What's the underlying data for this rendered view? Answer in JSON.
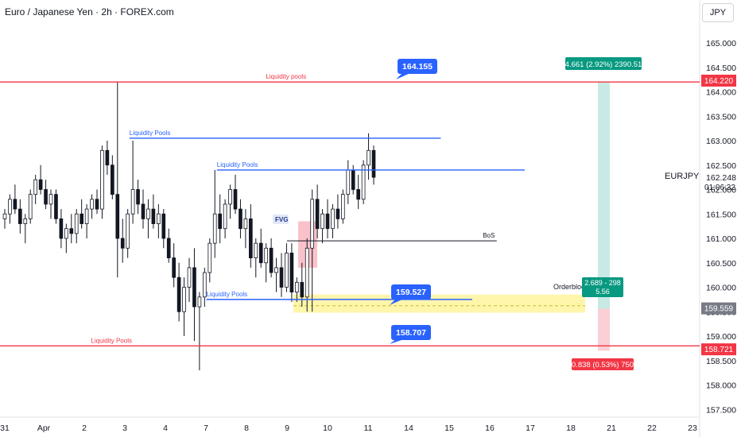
{
  "header": {
    "title": "Euro / Japanese Yen · 2h · FOREX.com",
    "currency_button": "JPY"
  },
  "symbol": {
    "name": "EURJPY",
    "price": "162.248",
    "countdown": "01:06:32"
  },
  "colors": {
    "up": "#131722",
    "down": "#131722",
    "red_line": "#f23645",
    "blue_line": "#2962ff",
    "green_tag": "#089981",
    "yellow_zone": "#fff59d",
    "fvg_box": "#f8bbc4"
  },
  "chart_data": {
    "type": "candlestick",
    "ylim": [
      157.0,
      165.5
    ],
    "y_ticks": [
      "165.000",
      "164.500",
      "164.000",
      "163.500",
      "163.000",
      "162.500",
      "162.000",
      "161.500",
      "161.000",
      "160.500",
      "160.000",
      "159.500",
      "159.000",
      "158.500",
      "158.000",
      "157.500"
    ],
    "x_ticks": [
      "31",
      "Apr",
      "2",
      "3",
      "4",
      "7",
      "8",
      "9",
      "10",
      "11",
      "14",
      "15",
      "16",
      "17",
      "18",
      "21",
      "22",
      "23"
    ],
    "price_tags": [
      {
        "label": "164.220",
        "value": 164.22,
        "color": "#f23645"
      },
      {
        "label": "159.559",
        "value": 159.559,
        "color": "#787b86"
      },
      {
        "label": "158.721",
        "value": 158.721,
        "color": "#f23645"
      }
    ],
    "lines": [
      {
        "label": "Liquidity pools",
        "value": 164.2,
        "color": "#f23645",
        "x_from": 0,
        "x_to": 1,
        "label_x": 0.38
      },
      {
        "label": "Liquidity Pools",
        "value": 163.05,
        "color": "#2962ff",
        "x_from": 0.185,
        "x_to": 0.63,
        "label_x": 0.185
      },
      {
        "label": "Liquidity Pools",
        "value": 162.4,
        "color": "#2962ff",
        "x_from": 0.31,
        "x_to": 0.75,
        "label_x": 0.31
      },
      {
        "label": "Liquidity Pools",
        "value": 159.75,
        "color": "#2962ff",
        "x_from": 0.295,
        "x_to": 0.675,
        "label_x": 0.295
      },
      {
        "label": "Liquidity Pools",
        "value": 158.8,
        "color": "#f23645",
        "x_from": 0,
        "x_to": 1,
        "label_x": 0.13
      },
      {
        "label": "BoS",
        "value": 160.95,
        "color": "#131722",
        "x_from": 0.41,
        "x_to": 0.71,
        "label_x": 0.69
      }
    ],
    "callouts": [
      {
        "label": "164.155",
        "value": 164.155
      },
      {
        "label": "159.527",
        "value": 159.527
      },
      {
        "label": "158.707",
        "value": 158.707
      }
    ],
    "annotations": {
      "fvg": "FVG",
      "orderblock": "Orderblock",
      "target": "4.661 (2.92%) 2390.51",
      "position": "2.689 - 298",
      "position_ratio": "5.56",
      "stop": "0.838 (0.53%) 750"
    },
    "candles": [
      [
        161.4,
        161.6,
        161.2,
        161.5
      ],
      [
        161.5,
        161.9,
        161.3,
        161.8
      ],
      [
        161.8,
        162.1,
        161.5,
        161.6
      ],
      [
        161.6,
        161.8,
        161.1,
        161.3
      ],
      [
        161.3,
        161.5,
        160.9,
        161.4
      ],
      [
        161.4,
        162.0,
        161.3,
        161.9
      ],
      [
        161.9,
        162.3,
        161.7,
        162.2
      ],
      [
        162.2,
        162.5,
        161.9,
        162.0
      ],
      [
        162.0,
        162.2,
        161.6,
        161.7
      ],
      [
        161.7,
        162.0,
        161.4,
        161.9
      ],
      [
        161.9,
        162.0,
        161.3,
        161.4
      ],
      [
        161.4,
        161.6,
        160.8,
        161.0
      ],
      [
        161.0,
        161.3,
        160.7,
        161.2
      ],
      [
        161.2,
        161.5,
        160.9,
        161.1
      ],
      [
        161.1,
        161.6,
        160.9,
        161.5
      ],
      [
        161.5,
        161.8,
        161.2,
        161.3
      ],
      [
        161.3,
        161.7,
        161.0,
        161.6
      ],
      [
        161.6,
        161.9,
        161.4,
        161.8
      ],
      [
        161.8,
        162.0,
        161.5,
        161.6
      ],
      [
        161.6,
        162.9,
        161.4,
        162.8
      ],
      [
        162.8,
        163.0,
        162.3,
        162.5
      ],
      [
        162.5,
        162.7,
        161.8,
        161.9
      ],
      [
        161.9,
        164.2,
        160.2,
        161.0
      ],
      [
        161.0,
        161.4,
        160.5,
        160.8
      ],
      [
        160.8,
        161.6,
        160.6,
        161.5
      ],
      [
        161.5,
        163.0,
        161.3,
        162.0
      ],
      [
        162.0,
        162.2,
        161.5,
        161.7
      ],
      [
        161.7,
        162.0,
        161.2,
        161.4
      ],
      [
        161.4,
        161.8,
        161.0,
        161.6
      ],
      [
        161.6,
        161.9,
        161.2,
        161.3
      ],
      [
        161.3,
        161.7,
        161.0,
        161.5
      ],
      [
        161.5,
        161.6,
        160.8,
        161.0
      ],
      [
        161.0,
        161.2,
        160.5,
        160.6
      ],
      [
        160.6,
        160.9,
        160.0,
        160.2
      ],
      [
        160.2,
        160.5,
        159.3,
        159.5
      ],
      [
        159.5,
        160.2,
        159.0,
        160.0
      ],
      [
        160.0,
        160.6,
        159.7,
        160.4
      ],
      [
        160.4,
        160.8,
        158.9,
        159.6
      ],
      [
        159.6,
        159.9,
        158.3,
        159.8
      ],
      [
        159.8,
        160.4,
        159.6,
        160.3
      ],
      [
        160.3,
        161.0,
        160.1,
        160.9
      ],
      [
        160.9,
        162.4,
        160.6,
        161.5
      ],
      [
        161.5,
        161.9,
        160.9,
        161.2
      ],
      [
        161.2,
        161.8,
        161.0,
        161.7
      ],
      [
        161.7,
        162.1,
        161.4,
        162.0
      ],
      [
        162.0,
        162.3,
        161.5,
        161.6
      ],
      [
        161.6,
        161.8,
        161.0,
        161.2
      ],
      [
        161.2,
        161.6,
        160.8,
        161.4
      ],
      [
        161.4,
        161.7,
        160.4,
        160.6
      ],
      [
        160.6,
        161.0,
        160.2,
        160.9
      ],
      [
        160.9,
        161.2,
        160.4,
        160.5
      ],
      [
        160.5,
        160.9,
        160.1,
        160.8
      ],
      [
        160.8,
        161.0,
        160.2,
        160.3
      ],
      [
        160.3,
        160.6,
        159.9,
        160.4
      ],
      [
        160.4,
        160.7,
        159.8,
        160.0
      ],
      [
        160.0,
        160.9,
        159.9,
        160.7
      ],
      [
        160.7,
        160.9,
        159.7,
        159.9
      ],
      [
        159.9,
        160.2,
        159.7,
        160.1
      ],
      [
        160.1,
        160.5,
        159.6,
        159.8
      ],
      [
        159.8,
        161.0,
        159.5,
        160.8
      ],
      [
        160.8,
        162.0,
        159.5,
        161.8
      ],
      [
        161.8,
        162.1,
        161.0,
        161.2
      ],
      [
        161.2,
        161.6,
        160.9,
        161.5
      ],
      [
        161.5,
        161.8,
        161.0,
        161.2
      ],
      [
        161.2,
        161.7,
        161.0,
        161.6
      ],
      [
        161.6,
        161.9,
        161.2,
        161.4
      ],
      [
        161.4,
        162.0,
        161.3,
        161.9
      ],
      [
        161.9,
        162.6,
        161.7,
        162.4
      ],
      [
        162.4,
        162.5,
        161.9,
        162.0
      ],
      [
        162.0,
        162.3,
        161.6,
        161.8
      ],
      [
        161.8,
        162.6,
        161.7,
        162.5
      ],
      [
        162.5,
        163.15,
        162.2,
        162.8
      ],
      [
        162.8,
        162.9,
        162.1,
        162.25
      ]
    ]
  }
}
